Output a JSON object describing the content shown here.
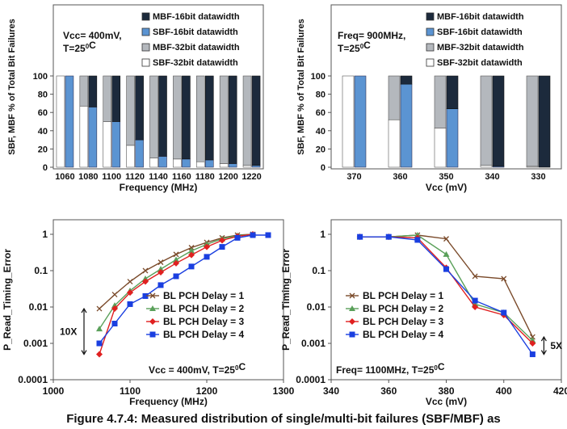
{
  "caption": "Figure 4.7.4: Measured distribution of single/multi-bit failures (SBF/MBF) as",
  "colors": {
    "mbf16": "#1c2a3c",
    "sbf16": "#5b94d2",
    "mbf32": "#b4b8bd",
    "sbf32": "#ffffff",
    "delay1": "#7a4a2a",
    "delay2": "#5aa05a",
    "delay3": "#e02020",
    "delay4": "#1a3fe0"
  },
  "chart_data": [
    {
      "type": "bar",
      "stacked": true,
      "condition": "Vcc= 400mV,\nT=25⁰C",
      "xlabel": "Frequency (MHz)",
      "ylabel": "SBF, MBF % of Total Bit Failures",
      "ylim": [
        0,
        100
      ],
      "yticks": [
        0,
        20,
        40,
        60,
        80,
        100
      ],
      "categories": [
        "1060",
        "1080",
        "1100",
        "1120",
        "1140",
        "1160",
        "1180",
        "1200",
        "1220"
      ],
      "legend": [
        "MBF-16bit datawidth",
        "SBF-16bit datawidth",
        "MBF-32bit datawidth",
        "SBF-32bit datawidth"
      ],
      "series_32bit": [
        {
          "name": "SBF-32bit datawidth",
          "values": [
            100,
            67,
            50,
            24,
            10,
            9,
            6,
            4,
            2
          ]
        },
        {
          "name": "MBF-32bit datawidth",
          "values": [
            0,
            33,
            50,
            76,
            90,
            91,
            94,
            96,
            98
          ]
        }
      ],
      "series_16bit": [
        {
          "name": "SBF-16bit datawidth",
          "values": [
            100,
            66,
            50,
            30,
            12,
            9,
            8,
            4,
            2
          ]
        },
        {
          "name": "MBF-16bit datawidth",
          "values": [
            0,
            34,
            50,
            70,
            88,
            91,
            92,
            96,
            98
          ]
        }
      ]
    },
    {
      "type": "bar",
      "stacked": true,
      "condition": "Freq= 900MHz,\nT=25⁰C",
      "xlabel": "Vcc (mV)",
      "ylabel": "SBF, MBF % of Total Bit Failures",
      "ylim": [
        0,
        100
      ],
      "yticks": [
        0,
        20,
        40,
        60,
        80,
        100
      ],
      "categories": [
        "370",
        "360",
        "350",
        "340",
        "330"
      ],
      "legend": [
        "MBF-16bit datawidth",
        "SBF-16bit datawidth",
        "MBF-32bit datawidth",
        "SBF-32bit datawidth"
      ],
      "series_32bit": [
        {
          "name": "SBF-32bit datawidth",
          "values": [
            100,
            52,
            43,
            2,
            1
          ]
        },
        {
          "name": "MBF-32bit datawidth",
          "values": [
            0,
            48,
            57,
            98,
            99
          ]
        }
      ],
      "series_16bit": [
        {
          "name": "SBF-16bit datawidth",
          "values": [
            100,
            91,
            64,
            1,
            0
          ]
        },
        {
          "name": "MBF-16bit datawidth",
          "values": [
            0,
            9,
            36,
            99,
            100
          ]
        }
      ]
    },
    {
      "type": "line",
      "yscale": "log",
      "xlabel": "Frequency (MHz)",
      "ylabel": "P_Read_Timing_Error",
      "xlim": [
        1000,
        1300
      ],
      "xticks": [
        "1000",
        "1100",
        "1200",
        "1300"
      ],
      "ylim": [
        0.0001,
        1
      ],
      "yticks": [
        "0.0001",
        "0.001",
        "0.01",
        "0.1",
        "1"
      ],
      "annotation": "10X",
      "condition": "Vcc = 400mV, T=25⁰C",
      "legend_position": "bottom-right",
      "series": [
        {
          "name": "BL PCH Delay = 1",
          "marker": "x",
          "x": [
            1060,
            1080,
            1100,
            1120,
            1140,
            1160,
            1180,
            1200,
            1220,
            1240,
            1260
          ],
          "y": [
            0.009,
            0.022,
            0.05,
            0.1,
            0.17,
            0.28,
            0.43,
            0.6,
            0.8,
            0.95,
            1
          ]
        },
        {
          "name": "BL PCH Delay = 2",
          "marker": "triangle",
          "x": [
            1060,
            1080,
            1100,
            1120,
            1140,
            1160,
            1180,
            1200,
            1220,
            1240,
            1260
          ],
          "y": [
            0.0025,
            0.011,
            0.028,
            0.06,
            0.11,
            0.2,
            0.35,
            0.53,
            0.75,
            0.92,
            1
          ]
        },
        {
          "name": "BL PCH Delay = 3",
          "marker": "diamond",
          "x": [
            1060,
            1080,
            1100,
            1120,
            1140,
            1160,
            1180,
            1200,
            1220,
            1240,
            1260
          ],
          "y": [
            0.0005,
            0.009,
            0.025,
            0.05,
            0.09,
            0.16,
            0.27,
            0.45,
            0.68,
            0.88,
            1
          ]
        },
        {
          "name": "BL PCH Delay = 4",
          "marker": "square",
          "x": [
            1060,
            1080,
            1100,
            1120,
            1140,
            1160,
            1180,
            1200,
            1220,
            1240,
            1260,
            1280
          ],
          "y": [
            0.001,
            0.0035,
            0.012,
            0.02,
            0.04,
            0.07,
            0.13,
            0.24,
            0.45,
            0.8,
            0.95,
            0.95
          ]
        }
      ]
    },
    {
      "type": "line",
      "yscale": "log",
      "xlabel": "Vcc (mV)",
      "ylabel": "P_Read_Timing_Error",
      "xlim": [
        340,
        420
      ],
      "xticks": [
        "340",
        "360",
        "380",
        "400",
        "420"
      ],
      "ylim": [
        0.0001,
        1
      ],
      "yticks": [
        "0.0001",
        "0.001",
        "0.01",
        "0.1",
        "1"
      ],
      "annotation": "5X",
      "condition": "Freq= 1100MHz, T=25⁰C",
      "legend_position": "bottom-left",
      "series": [
        {
          "name": "BL PCH Delay = 1",
          "marker": "x",
          "x": [
            350,
            360,
            370,
            380,
            390,
            400,
            410
          ],
          "y": [
            0.85,
            0.85,
            0.95,
            0.75,
            0.07,
            0.06,
            0.0015
          ]
        },
        {
          "name": "BL PCH Delay = 2",
          "marker": "triangle",
          "x": [
            350,
            360,
            370,
            380,
            390,
            400,
            410
          ],
          "y": [
            0.85,
            0.85,
            0.95,
            0.28,
            0.012,
            0.007,
            0.0012
          ]
        },
        {
          "name": "BL PCH Delay = 3",
          "marker": "diamond",
          "x": [
            350,
            360,
            370,
            380,
            390,
            400,
            410
          ],
          "y": [
            0.85,
            0.85,
            0.8,
            0.12,
            0.01,
            0.006,
            0.001
          ]
        },
        {
          "name": "BL PCH Delay = 4",
          "marker": "square",
          "x": [
            350,
            360,
            370,
            380,
            390,
            400,
            410
          ],
          "y": [
            0.85,
            0.85,
            0.7,
            0.11,
            0.015,
            0.007,
            0.0005
          ]
        }
      ]
    }
  ]
}
